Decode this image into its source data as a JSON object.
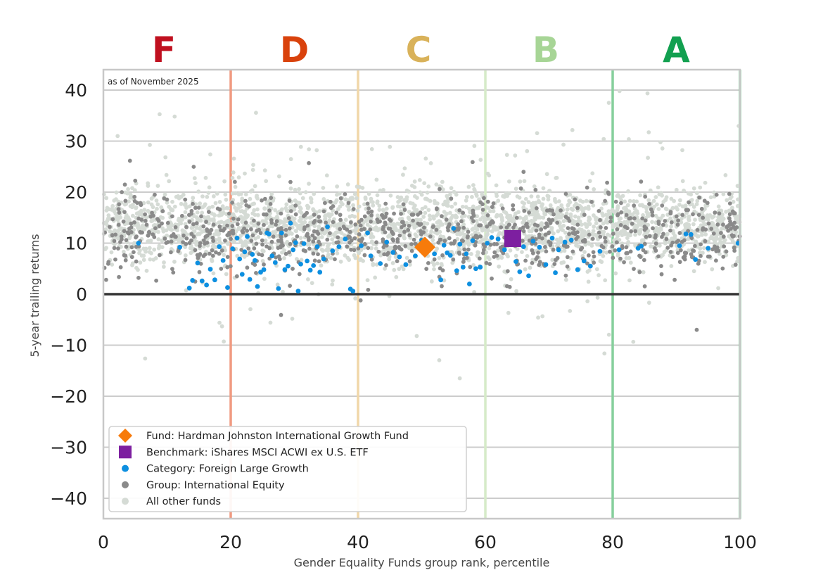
{
  "chart_data": {
    "type": "scatter",
    "annotation": "as of November 2025",
    "xlabel": "Gender Equality Funds group rank, percentile",
    "ylabel": "5-year trailing returns",
    "xlim": [
      0,
      100
    ],
    "ylim": [
      -44,
      44
    ],
    "x_ticks": [
      "0",
      "20",
      "40",
      "60",
      "80",
      "100"
    ],
    "y_ticks": [
      "40",
      "30",
      "20",
      "10",
      "0",
      "−10",
      "−20",
      "−30",
      "−40"
    ],
    "grades": [
      {
        "label": "F",
        "x_center": 9.5,
        "color": "#c0101f"
      },
      {
        "label": "D",
        "x_center": 30,
        "color": "#d9420c"
      },
      {
        "label": "C",
        "x_center": 49.5,
        "color": "#d9b25a"
      },
      {
        "label": "B",
        "x_center": 69.5,
        "color": "#a7d596"
      },
      {
        "label": "A",
        "x_center": 90,
        "color": "#12a050"
      }
    ],
    "grade_boundaries": [
      {
        "x": 20,
        "color": "#f09a80"
      },
      {
        "x": 40,
        "color": "#f1d7a8"
      },
      {
        "x": 60,
        "color": "#d6ebc8"
      },
      {
        "x": 80,
        "color": "#86cf9c"
      },
      {
        "x": 100,
        "color": "#86cf9c"
      }
    ],
    "legend": [
      {
        "label": "Fund: Hardman Johnston International Growth Fund",
        "marker": "diamond",
        "color": "#f77b0b"
      },
      {
        "label": "Benchmark: iShares MSCI ACWI ex U.S. ETF",
        "marker": "square",
        "color": "#7d1fa0"
      },
      {
        "label": "Category: Foreign Large Growth",
        "marker": "circle",
        "color": "#0d8fe0"
      },
      {
        "label": "Group: International Equity",
        "marker": "circle",
        "color": "#8a8a8a"
      },
      {
        "label": "All other funds",
        "marker": "circle",
        "color": "#d5dbd5"
      }
    ],
    "fund": {
      "x": 50.5,
      "y": 9.2
    },
    "benchmark": {
      "x": 64.3,
      "y": 10.9
    },
    "category_points": [
      [
        5.5,
        10.0
      ],
      [
        12.0,
        9.2
      ],
      [
        13.5,
        1.2
      ],
      [
        14.0,
        2.7
      ],
      [
        14.8,
        6.1
      ],
      [
        15.5,
        2.6
      ],
      [
        16.2,
        1.8
      ],
      [
        16.8,
        4.9
      ],
      [
        17.5,
        2.8
      ],
      [
        18.2,
        9.3
      ],
      [
        18.8,
        6.6
      ],
      [
        19.5,
        1.3
      ],
      [
        20.3,
        8.9
      ],
      [
        21.0,
        11.0
      ],
      [
        21.4,
        6.9
      ],
      [
        21.8,
        3.9
      ],
      [
        22.2,
        8.3
      ],
      [
        22.6,
        11.3
      ],
      [
        23.0,
        2.9
      ],
      [
        23.4,
        7.8
      ],
      [
        23.8,
        6.6
      ],
      [
        24.2,
        1.5
      ],
      [
        24.7,
        4.3
      ],
      [
        25.2,
        4.8
      ],
      [
        25.7,
        12.0
      ],
      [
        26.0,
        11.8
      ],
      [
        26.5,
        7.5
      ],
      [
        27.0,
        6.2
      ],
      [
        27.5,
        1.1
      ],
      [
        28.0,
        12.0
      ],
      [
        28.5,
        4.8
      ],
      [
        29.0,
        5.5
      ],
      [
        29.4,
        13.9
      ],
      [
        29.8,
        8.7
      ],
      [
        30.2,
        10.1
      ],
      [
        30.6,
        0.6
      ],
      [
        31.0,
        5.9
      ],
      [
        31.5,
        9.9
      ],
      [
        32.0,
        6.5
      ],
      [
        32.5,
        4.7
      ],
      [
        33.0,
        5.6
      ],
      [
        33.6,
        9.3
      ],
      [
        34.0,
        4.3
      ],
      [
        34.6,
        6.9
      ],
      [
        35.2,
        13.2
      ],
      [
        36.0,
        8.5
      ],
      [
        37.0,
        9.3
      ],
      [
        38.0,
        10.8
      ],
      [
        38.8,
        1.0
      ],
      [
        39.2,
        0.6
      ],
      [
        40.5,
        9.5
      ],
      [
        41.5,
        12.0
      ],
      [
        42.0,
        7.5
      ],
      [
        43.5,
        6.0
      ],
      [
        44.5,
        10.2
      ],
      [
        45.5,
        8.2
      ],
      [
        46.5,
        7.3
      ],
      [
        47.5,
        5.8
      ],
      [
        49.0,
        7.5
      ],
      [
        50.0,
        10.5
      ],
      [
        51.0,
        8.6
      ],
      [
        52.0,
        7.9
      ],
      [
        53.0,
        2.8
      ],
      [
        53.5,
        9.6
      ],
      [
        54.0,
        8.1
      ],
      [
        54.5,
        7.6
      ],
      [
        55.0,
        12.9
      ],
      [
        55.5,
        4.6
      ],
      [
        56.0,
        9.8
      ],
      [
        56.5,
        5.3
      ],
      [
        57.0,
        7.9
      ],
      [
        57.5,
        2.0
      ],
      [
        58.0,
        10.5
      ],
      [
        58.5,
        5.0
      ],
      [
        59.2,
        5.3
      ],
      [
        60.3,
        10.0
      ],
      [
        61.0,
        11.1
      ],
      [
        62.0,
        10.8
      ],
      [
        63.0,
        8.7
      ],
      [
        64.0,
        10.1
      ],
      [
        64.8,
        6.4
      ],
      [
        65.4,
        4.4
      ],
      [
        66.0,
        9.3
      ],
      [
        66.8,
        3.6
      ],
      [
        67.5,
        10.4
      ],
      [
        68.5,
        9.2
      ],
      [
        69.5,
        5.8
      ],
      [
        70.5,
        11.0
      ],
      [
        71.0,
        4.2
      ],
      [
        71.5,
        8.7
      ],
      [
        72.5,
        10.2
      ],
      [
        73.5,
        10.6
      ],
      [
        74.5,
        4.8
      ],
      [
        75.5,
        6.5
      ],
      [
        76.5,
        5.5
      ],
      [
        78.0,
        8.4
      ],
      [
        81.0,
        8.7
      ],
      [
        84.0,
        9.0
      ],
      [
        84.5,
        9.4
      ],
      [
        90.5,
        9.5
      ],
      [
        91.5,
        11.8
      ],
      [
        92.3,
        11.7
      ],
      [
        93.0,
        6.8
      ],
      [
        95.0,
        9.0
      ],
      [
        99.7,
        10.0
      ]
    ]
  }
}
